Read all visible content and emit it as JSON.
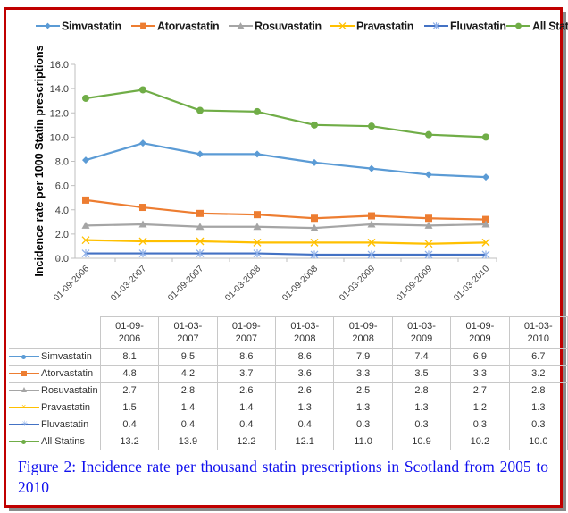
{
  "chart_data": {
    "type": "line",
    "title": "",
    "xlabel": "",
    "ylabel": "Incidence rate per 1000  Statin prescriptions",
    "ylim": [
      0,
      16
    ],
    "yticks": [
      "0.0",
      "2.0",
      "4.0",
      "6.0",
      "8.0",
      "10.0",
      "12.0",
      "14.0",
      "16.0"
    ],
    "ytick_values": [
      0,
      2,
      4,
      6,
      8,
      10,
      12,
      14,
      16
    ],
    "grid": false,
    "legend_position": "top",
    "categories": [
      "01-09-2006",
      "01-03-2007",
      "01-09-2007",
      "01-03-2008",
      "01-09-2008",
      "01-03-2009",
      "01-09-2009",
      "01-03-2010"
    ],
    "table_header": [
      [
        "01-09-",
        "2006"
      ],
      [
        "01-03-",
        "2007"
      ],
      [
        "01-09-",
        "2007"
      ],
      [
        "01-03-",
        "2008"
      ],
      [
        "01-09-",
        "2008"
      ],
      [
        "01-03-",
        "2009"
      ],
      [
        "01-09-",
        "2009"
      ],
      [
        "01-03-",
        "2010"
      ]
    ],
    "series": [
      {
        "name": "Simvastatin",
        "color": "#5b9bd5",
        "marker": "diamond",
        "values": [
          8.1,
          9.5,
          8.6,
          8.6,
          7.9,
          7.4,
          6.9,
          6.7
        ],
        "labels": [
          "8.1",
          "9.5",
          "8.6",
          "8.6",
          "7.9",
          "7.4",
          "6.9",
          "6.7"
        ]
      },
      {
        "name": "Atorvastatin",
        "color": "#ed7d31",
        "marker": "square",
        "values": [
          4.8,
          4.2,
          3.7,
          3.6,
          3.3,
          3.5,
          3.3,
          3.2
        ],
        "labels": [
          "4.8",
          "4.2",
          "3.7",
          "3.6",
          "3.3",
          "3.5",
          "3.3",
          "3.2"
        ]
      },
      {
        "name": "Rosuvastatin",
        "color": "#a5a5a5",
        "marker": "triangle",
        "values": [
          2.7,
          2.8,
          2.6,
          2.6,
          2.5,
          2.8,
          2.7,
          2.8
        ],
        "labels": [
          "2.7",
          "2.8",
          "2.6",
          "2.6",
          "2.5",
          "2.8",
          "2.7",
          "2.8"
        ]
      },
      {
        "name": "Pravastatin",
        "color": "#ffc000",
        "marker": "x",
        "values": [
          1.5,
          1.4,
          1.4,
          1.3,
          1.3,
          1.3,
          1.2,
          1.3
        ],
        "labels": [
          "1.5",
          "1.4",
          "1.4",
          "1.3",
          "1.3",
          "1.3",
          "1.2",
          "1.3"
        ]
      },
      {
        "name": "Fluvastatin",
        "color": "#4472c4",
        "marker": "star",
        "values": [
          0.4,
          0.4,
          0.4,
          0.4,
          0.3,
          0.3,
          0.3,
          0.3
        ],
        "labels": [
          "0.4",
          "0.4",
          "0.4",
          "0.4",
          "0.3",
          "0.3",
          "0.3",
          "0.3"
        ]
      },
      {
        "name": "All Statins",
        "color": "#70ad47",
        "marker": "circle",
        "values": [
          13.2,
          13.9,
          12.2,
          12.1,
          11.0,
          10.9,
          10.2,
          10.0
        ],
        "labels": [
          "13.2",
          "13.9",
          "12.2",
          "12.1",
          "11.0",
          "10.9",
          "10.2",
          "10.0"
        ]
      }
    ]
  },
  "caption": "Figure 2: Incidence rate per thousand statin prescriptions in Scotland from 2005 to 2010",
  "colors": {
    "frame_border": "#c00000",
    "caption_text": "#1010ee"
  }
}
